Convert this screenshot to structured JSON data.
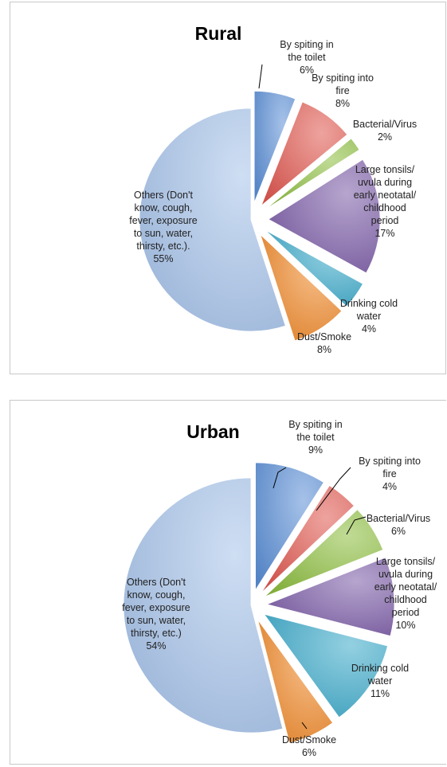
{
  "chart_data": [
    {
      "type": "pie",
      "title": "Rural",
      "slices": [
        {
          "label": [
            "By spiting in",
            "the toilet",
            "6%"
          ],
          "value": 6,
          "color": "#5b8fd6"
        },
        {
          "label": [
            "By spiting into",
            "fire",
            "8%"
          ],
          "value": 8,
          "color": "#e0574f"
        },
        {
          "label": [
            "Bacterial/Virus",
            "2%"
          ],
          "value": 2,
          "color": "#8cbd3f"
        },
        {
          "label": [
            "Large tonsils/",
            "uvula during",
            "early neotatal/",
            "childhood",
            "period",
            "17%"
          ],
          "value": 17,
          "color": "#7b5ba6"
        },
        {
          "label": [
            "Drinking cold",
            "water",
            "4%"
          ],
          "value": 4,
          "color": "#3ba9c9"
        },
        {
          "label": [
            "Dust/Smoke",
            "8%"
          ],
          "value": 8,
          "color": "#f08a2c"
        },
        {
          "label": [
            "Others (Don't",
            "know, cough,",
            "fever, exposure",
            "to sun, water,",
            "thirsty, etc.).",
            "55%"
          ],
          "value": 55,
          "color": "#a6c3ea"
        }
      ]
    },
    {
      "type": "pie",
      "title": "Urban",
      "slices": [
        {
          "label": [
            "By spiting in",
            "the toilet",
            "9%"
          ],
          "value": 9,
          "color": "#5b8fd6"
        },
        {
          "label": [
            "By spiting into",
            "fire",
            "4%"
          ],
          "value": 4,
          "color": "#e0574f"
        },
        {
          "label": [
            "Bacterial/Virus",
            "6%"
          ],
          "value": 6,
          "color": "#8cbd3f"
        },
        {
          "label": [
            "Large tonsils/",
            "uvula during",
            "early neotatal/",
            "childhood",
            "period",
            "10%"
          ],
          "value": 10,
          "color": "#7b5ba6"
        },
        {
          "label": [
            "Drinking cold",
            "water",
            "11%"
          ],
          "value": 11,
          "color": "#3ba9c9"
        },
        {
          "label": [
            "Dust/Smoke",
            "6%"
          ],
          "value": 6,
          "color": "#f08a2c"
        },
        {
          "label": [
            "Others (Don't",
            "know, cough,",
            "fever, exposure",
            "to sun, water,",
            "thirsty, etc.)",
            "54%"
          ],
          "value": 54,
          "color": "#a6c3ea"
        }
      ]
    }
  ]
}
